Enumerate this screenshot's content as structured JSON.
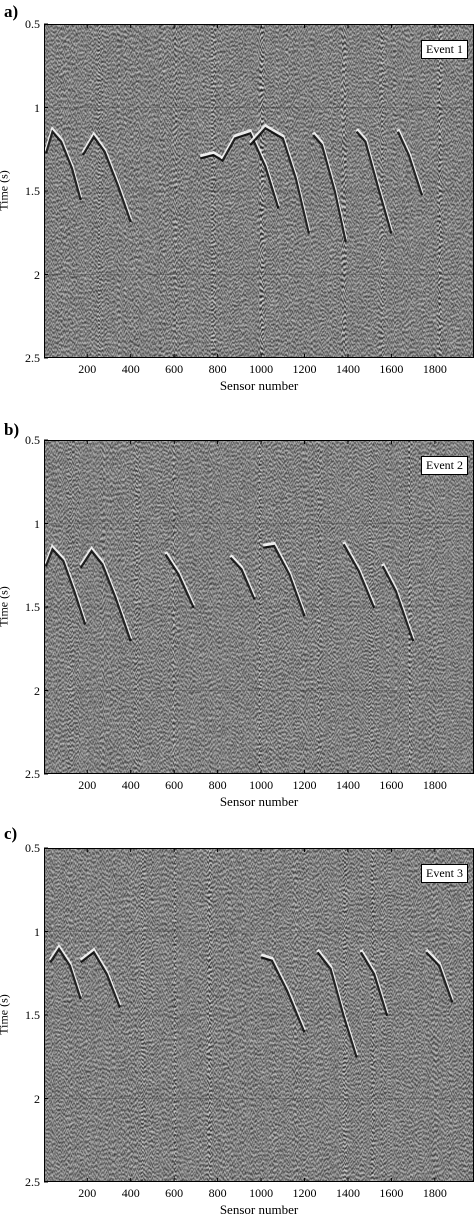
{
  "chart_data": [
    {
      "type": "heatmap",
      "panel_label": "a)",
      "event_label": "Event 1",
      "xlabel": "Sensor number",
      "ylabel": "Time (s)",
      "x_ticks": [
        "200",
        "400",
        "600",
        "800",
        "1000",
        "1200",
        "1400",
        "1600",
        "1800"
      ],
      "y_ticks": [
        "0.5",
        "1",
        "1.5",
        "2",
        "2.5"
      ],
      "xlim": [
        1,
        1980
      ],
      "ylim": [
        0.5,
        2.5
      ],
      "y_inverted": true,
      "colormap": "grayscale",
      "arrival_curves": [
        {
          "x": [
            10,
            40,
            80,
            130,
            170
          ],
          "y": [
            1.27,
            1.14,
            1.2,
            1.36,
            1.55
          ]
        },
        {
          "x": [
            180,
            230,
            280,
            340,
            400
          ],
          "y": [
            1.28,
            1.17,
            1.26,
            1.46,
            1.68
          ]
        },
        {
          "x": [
            720,
            780,
            820
          ],
          "y": [
            1.3,
            1.28,
            1.31
          ]
        },
        {
          "x": [
            820,
            880,
            950,
            1020,
            1080
          ],
          "y": [
            1.32,
            1.18,
            1.15,
            1.35,
            1.6
          ]
        },
        {
          "x": [
            950,
            1020,
            1100,
            1160,
            1220
          ],
          "y": [
            1.22,
            1.12,
            1.18,
            1.42,
            1.75
          ]
        },
        {
          "x": [
            1240,
            1280,
            1340,
            1390
          ],
          "y": [
            1.16,
            1.22,
            1.5,
            1.8
          ]
        },
        {
          "x": [
            1440,
            1480,
            1540,
            1600
          ],
          "y": [
            1.14,
            1.2,
            1.48,
            1.75
          ]
        },
        {
          "x": [
            1630,
            1680,
            1740
          ],
          "y": [
            1.14,
            1.28,
            1.52
          ]
        }
      ],
      "noise_columns": [
        260,
        600,
        780,
        1000,
        1380,
        1560,
        1820
      ]
    },
    {
      "type": "heatmap",
      "panel_label": "b)",
      "event_label": "Event 2",
      "xlabel": "Sensor number",
      "ylabel": "Time (s)",
      "x_ticks": [
        "200",
        "400",
        "600",
        "800",
        "1000",
        "1200",
        "1400",
        "1600",
        "1800"
      ],
      "y_ticks": [
        "0.5",
        "1",
        "1.5",
        "2",
        "2.5"
      ],
      "xlim": [
        1,
        1980
      ],
      "ylim": [
        0.5,
        2.5
      ],
      "y_inverted": true,
      "colormap": "grayscale",
      "arrival_curves": [
        {
          "x": [
            10,
            40,
            90,
            140,
            190
          ],
          "y": [
            1.25,
            1.15,
            1.22,
            1.4,
            1.6
          ]
        },
        {
          "x": [
            170,
            220,
            270,
            330,
            400
          ],
          "y": [
            1.26,
            1.16,
            1.24,
            1.44,
            1.7
          ]
        },
        {
          "x": [
            560,
            620,
            690
          ],
          "y": [
            1.18,
            1.3,
            1.5
          ]
        },
        {
          "x": [
            860,
            910,
            970
          ],
          "y": [
            1.2,
            1.27,
            1.45
          ]
        },
        {
          "x": [
            1010,
            1060,
            1130,
            1200
          ],
          "y": [
            1.14,
            1.13,
            1.3,
            1.55
          ]
        },
        {
          "x": [
            1380,
            1450,
            1520
          ],
          "y": [
            1.12,
            1.28,
            1.5
          ]
        },
        {
          "x": [
            1560,
            1620,
            1700
          ],
          "y": [
            1.25,
            1.4,
            1.7
          ]
        }
      ],
      "noise_columns": [
        120,
        430,
        600,
        990,
        1260,
        1500,
        1680
      ]
    },
    {
      "type": "heatmap",
      "panel_label": "c)",
      "event_label": "Event 3",
      "xlabel": "Sensor number",
      "ylabel": "Time (s)",
      "x_ticks": [
        "200",
        "400",
        "600",
        "800",
        "1000",
        "1200",
        "1400",
        "1600",
        "1800"
      ],
      "y_ticks": [
        "0.5",
        "1",
        "1.5",
        "2",
        "2.5"
      ],
      "xlim": [
        1,
        1980
      ],
      "ylim": [
        0.5,
        2.5
      ],
      "y_inverted": true,
      "colormap": "grayscale",
      "arrival_curves": [
        {
          "x": [
            30,
            70,
            120,
            170
          ],
          "y": [
            1.18,
            1.1,
            1.2,
            1.4
          ]
        },
        {
          "x": [
            170,
            230,
            290,
            350
          ],
          "y": [
            1.18,
            1.12,
            1.25,
            1.45
          ]
        },
        {
          "x": [
            1000,
            1050,
            1120,
            1200
          ],
          "y": [
            1.15,
            1.17,
            1.35,
            1.6
          ]
        },
        {
          "x": [
            1260,
            1320,
            1380,
            1440
          ],
          "y": [
            1.12,
            1.22,
            1.5,
            1.75
          ]
        },
        {
          "x": [
            1460,
            1520,
            1580
          ],
          "y": [
            1.12,
            1.25,
            1.5
          ]
        },
        {
          "x": [
            1760,
            1820,
            1880
          ],
          "y": [
            1.12,
            1.2,
            1.42
          ]
        }
      ],
      "noise_columns": [
        450,
        600,
        760,
        1380,
        1510,
        1560
      ]
    }
  ]
}
